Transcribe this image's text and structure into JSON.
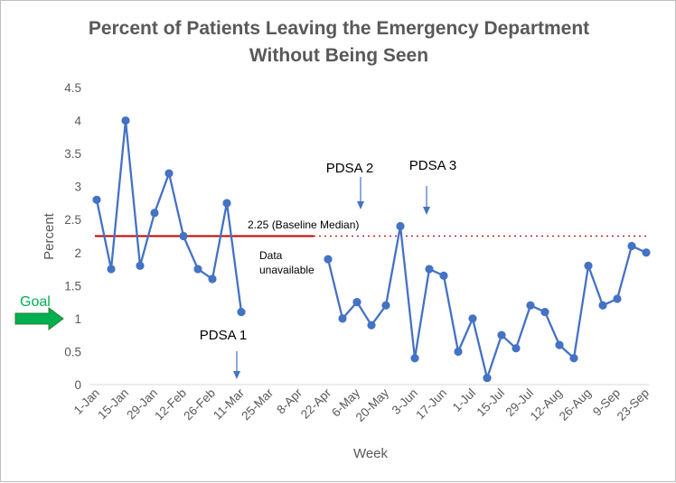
{
  "chart_data": {
    "type": "line",
    "title_line1": "Percent of Patients Leaving the Emergency Department",
    "title_line2": "Without Being Seen",
    "xlabel": "Week",
    "ylabel": "Percent",
    "ylim": [
      0,
      4.5
    ],
    "y_ticks": [
      "0",
      "0.5",
      "1",
      "1.5",
      "2",
      "2.5",
      "3",
      "3.5",
      "4",
      "4.5"
    ],
    "x_tick_labels": [
      "1-Jan",
      "15-Jan",
      "29-Jan",
      "12-Feb",
      "26-Feb",
      "11-Mar",
      "25-Mar",
      "8-Apr",
      "22-Apr",
      "6-May",
      "20-May",
      "3-Jun",
      "17-Jun",
      "1-Jul",
      "15-Jul",
      "29-Jul",
      "12-Aug",
      "26-Aug",
      "9-Sep",
      "23-Sep"
    ],
    "series": [
      {
        "name": "Percent",
        "color": "#4472c4",
        "segments": [
          {
            "start_week": 0,
            "values": [
              2.8,
              1.75,
              4.0,
              1.8,
              2.6,
              3.2,
              2.25,
              1.75,
              1.6,
              2.75,
              1.1
            ]
          },
          {
            "start_week": 16,
            "values": [
              1.9,
              1.0,
              1.25,
              0.9,
              1.2,
              2.4,
              0.4,
              1.75,
              1.65,
              0.5,
              1.0,
              0.1,
              0.75,
              0.55,
              1.2,
              1.1,
              0.6,
              0.4,
              1.8,
              1.2,
              1.3,
              2.1,
              2.0
            ]
          }
        ]
      }
    ],
    "baseline": {
      "value": 2.25,
      "label": "2.25 (Baseline Median)",
      "color": "#c00000"
    },
    "goal": {
      "value": 1,
      "label": "Goal",
      "color": "#00b050"
    },
    "annotations": [
      {
        "text": "PDSA 1",
        "week": 10
      },
      {
        "text": "PDSA 2",
        "week": 19
      },
      {
        "text": "PDSA 3",
        "week": 24
      }
    ],
    "gap_label_line1": "Data",
    "gap_label_line2": "unavailable"
  }
}
